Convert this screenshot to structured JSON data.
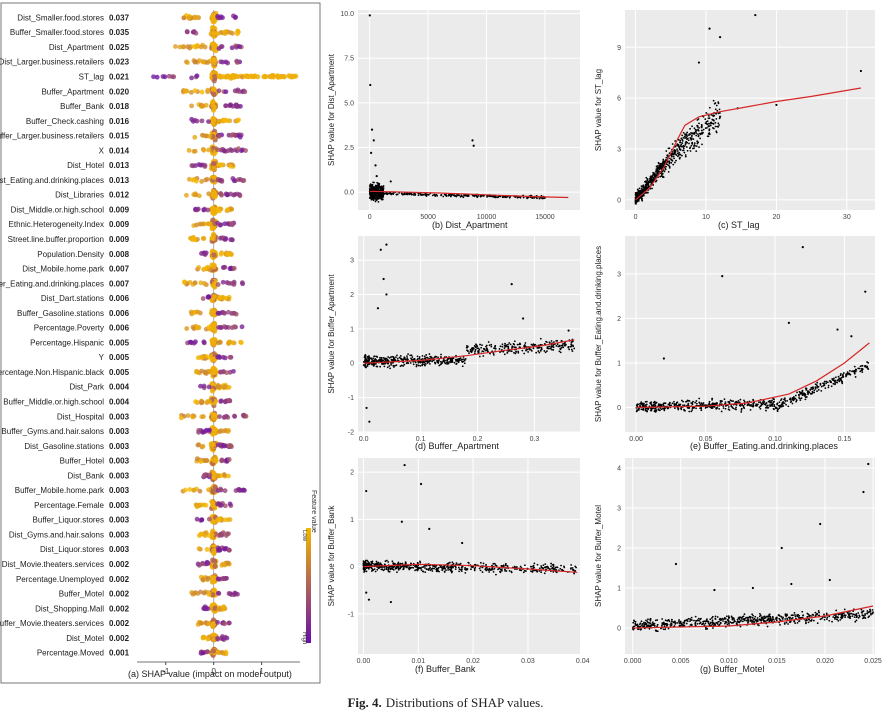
{
  "caption": {
    "label": "Fig. 4.",
    "text": "Distributions of SHAP values."
  },
  "colors": {
    "low": "#f5b800",
    "high": "#6a0dad",
    "trend": "#d62728",
    "points": "#000000",
    "panel": "#ebebeb",
    "grid": "#ffffff"
  },
  "chart_data": [
    {
      "panel": "(a)",
      "type": "scatter",
      "subtype": "shap-beeswarm",
      "xlabel": "SHAP value (impact on model output)",
      "xlim": [
        -1.6,
        1.8
      ],
      "xticks": [
        -1,
        0,
        1
      ],
      "colorbar": {
        "title": "Feature value",
        "low": "Low",
        "high": "High"
      },
      "features": [
        {
          "name": "Dist_Smaller.food.stores",
          "importance": "0.037"
        },
        {
          "name": "Buffer_Smaller.food.stores",
          "importance": "0.035"
        },
        {
          "name": "Dist_Apartment",
          "importance": "0.025"
        },
        {
          "name": "Dist_Larger.business.retailers",
          "importance": "0.023"
        },
        {
          "name": "ST_lag",
          "importance": "0.021"
        },
        {
          "name": "Buffer_Apartment",
          "importance": "0.020"
        },
        {
          "name": "Buffer_Bank",
          "importance": "0.018"
        },
        {
          "name": "Buffer_Check.cashing",
          "importance": "0.016"
        },
        {
          "name": "Buffer_Larger.business.retailers",
          "importance": "0.015"
        },
        {
          "name": "X",
          "importance": "0.014"
        },
        {
          "name": "Dist_Hotel",
          "importance": "0.013"
        },
        {
          "name": "Dist_Eating.and.drinking.places",
          "importance": "0.013"
        },
        {
          "name": "Dist_Libraries",
          "importance": "0.012"
        },
        {
          "name": "Dist_Middle.or.high.school",
          "importance": "0.009"
        },
        {
          "name": "Ethnic.Heterogeneity.Index",
          "importance": "0.009"
        },
        {
          "name": "Street.line.buffer.proportion",
          "importance": "0.009"
        },
        {
          "name": "Population.Density",
          "importance": "0.008"
        },
        {
          "name": "Dist_Mobile.home.park",
          "importance": "0.007"
        },
        {
          "name": "Buffer_Eating.and.drinking.places",
          "importance": "0.007"
        },
        {
          "name": "Dist_Dart.stations",
          "importance": "0.006"
        },
        {
          "name": "Buffer_Gasoline.stations",
          "importance": "0.006"
        },
        {
          "name": "Percentage.Poverty",
          "importance": "0.006"
        },
        {
          "name": "Percentage.Hispanic",
          "importance": "0.005"
        },
        {
          "name": "Y",
          "importance": "0.005"
        },
        {
          "name": "Percentage.Non.Hispanic.black",
          "importance": "0.005"
        },
        {
          "name": "Dist_Park",
          "importance": "0.004"
        },
        {
          "name": "Buffer_Middle.or.high.school",
          "importance": "0.004"
        },
        {
          "name": "Dist_Hospital",
          "importance": "0.003"
        },
        {
          "name": "Buffer_Gyms.and.hair.salons",
          "importance": "0.003"
        },
        {
          "name": "Dist_Gasoline.stations",
          "importance": "0.003"
        },
        {
          "name": "Buffer_Hotel",
          "importance": "0.003"
        },
        {
          "name": "Dist_Bank",
          "importance": "0.003"
        },
        {
          "name": "Buffer_Mobile.home.park",
          "importance": "0.003"
        },
        {
          "name": "Percentage.Female",
          "importance": "0.003"
        },
        {
          "name": "Buffer_Liquor.stores",
          "importance": "0.003"
        },
        {
          "name": "Dist_Gyms.and.hair.salons",
          "importance": "0.003"
        },
        {
          "name": "Dist_Liquor.stores",
          "importance": "0.003"
        },
        {
          "name": "Dist_Movie.theaters.services",
          "importance": "0.002"
        },
        {
          "name": "Percentage.Unemployed",
          "importance": "0.002"
        },
        {
          "name": "Buffer_Motel",
          "importance": "0.002"
        },
        {
          "name": "Dist_Shopping.Mall",
          "importance": "0.002"
        },
        {
          "name": "Buffer_Movie.theaters.services",
          "importance": "0.002"
        },
        {
          "name": "Dist_Motel",
          "importance": "0.002"
        },
        {
          "name": "Percentage.Moved",
          "importance": "0.001"
        }
      ]
    },
    {
      "panel": "(b)",
      "type": "scatter",
      "xlabel": "Dist_Apartment",
      "ylabel": "SHAP value for Dist_Apartment",
      "xlim": [
        -1000,
        18000
      ],
      "ylim": [
        -1.0,
        10.2
      ],
      "xticks": [
        0,
        5000,
        10000,
        15000
      ],
      "xticklabels": [
        "0",
        "5000",
        "10000",
        "15000"
      ],
      "yticks": [
        0,
        2.5,
        5,
        7.5,
        10
      ],
      "yticklabels": [
        "0.0",
        "2.5",
        "5.0",
        "7.5",
        "10.0"
      ],
      "trend": [
        [
          0,
          0.05
        ],
        [
          2000,
          0.02
        ],
        [
          6000,
          -0.05
        ],
        [
          10000,
          -0.15
        ],
        [
          14000,
          -0.25
        ],
        [
          17000,
          -0.3
        ]
      ],
      "points": [
        [
          10,
          9.9
        ],
        [
          50,
          6.0
        ],
        [
          200,
          3.5
        ],
        [
          350,
          2.9
        ],
        [
          120,
          2.2
        ],
        [
          500,
          1.5
        ],
        [
          8800,
          2.9
        ],
        [
          8900,
          2.6
        ],
        [
          1800,
          0.6
        ],
        [
          600,
          0.9
        ]
      ]
    },
    {
      "panel": "(c)",
      "type": "scatter",
      "xlabel": "ST_lag",
      "ylabel": "SHAP value for ST_lag",
      "xlim": [
        -1.5,
        34
      ],
      "ylim": [
        -0.6,
        11.2
      ],
      "xticks": [
        0,
        10,
        20,
        30
      ],
      "xticklabels": [
        "0",
        "10",
        "20",
        "30"
      ],
      "yticks": [
        0,
        3,
        6,
        9
      ],
      "yticklabels": [
        "0",
        "3",
        "6",
        "9"
      ],
      "trend": [
        [
          0,
          0.0
        ],
        [
          2,
          0.7
        ],
        [
          4,
          1.9
        ],
        [
          6,
          3.6
        ],
        [
          7,
          4.4
        ],
        [
          9,
          4.9
        ],
        [
          12,
          5.2
        ],
        [
          16,
          5.5
        ],
        [
          20,
          5.8
        ],
        [
          25,
          6.1
        ],
        [
          32,
          6.6
        ]
      ],
      "points": [
        [
          17,
          10.9
        ],
        [
          10.5,
          10.1
        ],
        [
          12,
          9.6
        ],
        [
          14.5,
          5.4
        ],
        [
          20,
          5.6
        ],
        [
          32,
          7.6
        ],
        [
          12,
          4.9
        ],
        [
          9,
          8.1
        ]
      ]
    },
    {
      "panel": "(d)",
      "type": "scatter",
      "xlabel": "Buffer_Apartment",
      "ylabel": "SHAP value for Buffer_Apartment",
      "xlim": [
        -0.01,
        0.38
      ],
      "ylim": [
        -2.0,
        3.7
      ],
      "xticks": [
        0,
        0.1,
        0.2,
        0.3
      ],
      "xticklabels": [
        "0.0",
        "0.1",
        "0.2",
        "0.3"
      ],
      "yticks": [
        -2,
        -1,
        0,
        1,
        2,
        3
      ],
      "yticklabels": [
        "-2",
        "-1",
        "0",
        "1",
        "2",
        "3"
      ],
      "trend": [
        [
          0,
          0.0
        ],
        [
          0.1,
          0.08
        ],
        [
          0.18,
          0.22
        ],
        [
          0.25,
          0.38
        ],
        [
          0.31,
          0.5
        ],
        [
          0.37,
          0.68
        ]
      ],
      "points": [
        [
          0.04,
          3.45
        ],
        [
          0.03,
          3.3
        ],
        [
          0.035,
          2.45
        ],
        [
          0.04,
          2.0
        ],
        [
          0.025,
          1.6
        ],
        [
          0.01,
          -1.7
        ],
        [
          0.005,
          -1.3
        ],
        [
          0.26,
          2.3
        ],
        [
          0.28,
          1.3
        ],
        [
          0.36,
          0.95
        ]
      ]
    },
    {
      "panel": "(e)",
      "type": "scatter",
      "xlabel": "Buffer_Eating.and.drinking.places",
      "ylabel": "SHAP value for Buffer_Eating.and.drinking.places",
      "xlim": [
        -0.008,
        0.172
      ],
      "ylim": [
        -0.55,
        3.85
      ],
      "xticks": [
        0,
        0.05,
        0.1,
        0.15
      ],
      "xticklabels": [
        "0.00",
        "0.05",
        "0.10",
        "0.15"
      ],
      "yticks": [
        0,
        1,
        2,
        3
      ],
      "yticklabels": [
        "0",
        "1",
        "2",
        "3"
      ],
      "trend": [
        [
          0,
          0.0
        ],
        [
          0.05,
          0.03
        ],
        [
          0.08,
          0.1
        ],
        [
          0.11,
          0.3
        ],
        [
          0.13,
          0.6
        ],
        [
          0.15,
          1.0
        ],
        [
          0.168,
          1.45
        ]
      ],
      "points": [
        [
          0.12,
          3.6
        ],
        [
          0.062,
          2.95
        ],
        [
          0.165,
          2.6
        ],
        [
          0.11,
          1.9
        ],
        [
          0.02,
          1.1
        ],
        [
          0.145,
          1.75
        ],
        [
          0.155,
          1.6
        ]
      ]
    },
    {
      "panel": "(f)",
      "type": "scatter",
      "xlabel": "Buffer_Bank",
      "ylabel": "SHAP value for Buffer_Bank",
      "xlim": [
        -0.001,
        0.0395
      ],
      "ylim": [
        -1.85,
        2.3
      ],
      "xticks": [
        0,
        0.01,
        0.02,
        0.03,
        0.04
      ],
      "xticklabels": [
        "0.00",
        "0.01",
        "0.02",
        "0.03",
        "0.04"
      ],
      "yticks": [
        -1,
        0,
        1,
        2
      ],
      "yticklabels": [
        "-1",
        "0",
        "1",
        "2"
      ],
      "trend": [
        [
          0,
          0.0
        ],
        [
          0.01,
          0.05
        ],
        [
          0.02,
          0.02
        ],
        [
          0.03,
          -0.05
        ],
        [
          0.039,
          -0.12
        ]
      ],
      "points": [
        [
          0.0075,
          2.15
        ],
        [
          0.0105,
          1.75
        ],
        [
          0.0005,
          1.6
        ],
        [
          0.007,
          0.95
        ],
        [
          0.012,
          0.8
        ],
        [
          0.018,
          0.5
        ],
        [
          0.0005,
          -0.55
        ],
        [
          0.001,
          -0.7
        ],
        [
          0.005,
          -0.75
        ]
      ]
    },
    {
      "panel": "(g)",
      "type": "scatter",
      "xlabel": "Buffer_Motel",
      "ylabel": "SHAP value for Buffer_Motel",
      "xlim": [
        -0.0008,
        0.0252
      ],
      "ylim": [
        -0.65,
        4.25
      ],
      "xticks": [
        0,
        0.005,
        0.01,
        0.015,
        0.02,
        0.025
      ],
      "xticklabels": [
        "0.000",
        "0.005",
        "0.010",
        "0.015",
        "0.020",
        "0.025"
      ],
      "yticks": [
        0,
        1,
        2,
        3,
        4
      ],
      "yticklabels": [
        "0",
        "1",
        "2",
        "3",
        "4"
      ],
      "trend": [
        [
          0,
          0.0
        ],
        [
          0.01,
          0.05
        ],
        [
          0.015,
          0.15
        ],
        [
          0.02,
          0.3
        ],
        [
          0.025,
          0.55
        ]
      ],
      "points": [
        [
          0.0245,
          4.1
        ],
        [
          0.024,
          3.4
        ],
        [
          0.0195,
          2.6
        ],
        [
          0.0155,
          2.0
        ],
        [
          0.0045,
          1.6
        ],
        [
          0.0165,
          1.1
        ],
        [
          0.0125,
          1.0
        ],
        [
          0.0085,
          0.95
        ],
        [
          0.0205,
          1.2
        ]
      ]
    }
  ]
}
